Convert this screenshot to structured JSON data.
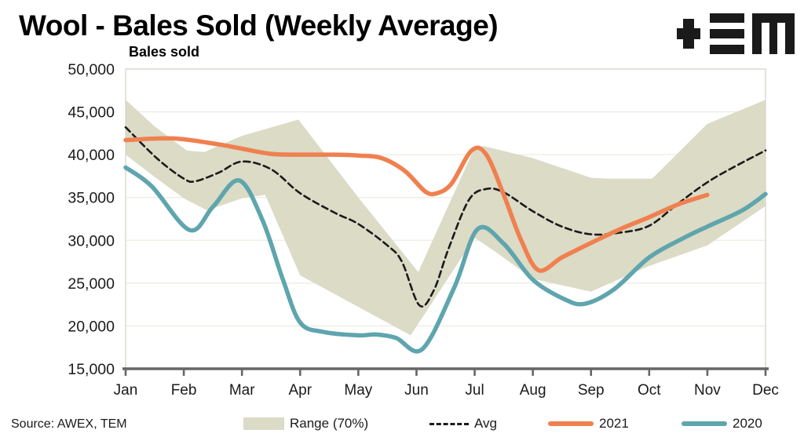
{
  "title": "Wool - Bales Sold (Weekly Average)",
  "axis_title": "Bales sold",
  "source_note": "Source: AWEX, TEM",
  "logo": {
    "name": "TEM",
    "glyphs": [
      "plus",
      "triple-bar",
      "m"
    ],
    "color": "#1a1a1a"
  },
  "colors": {
    "band": "#DBDBC6",
    "avg_line": "#1A1A1A",
    "series_2021": "#F0804F",
    "series_2020": "#5FA5AE",
    "grid": "#EDEBE1",
    "plot_border": "#D8D7CB",
    "axis": "#666666",
    "text": "#1A1A1A"
  },
  "chart_data": {
    "type": "line",
    "title": "Wool - Bales Sold (Weekly Average)",
    "xlabel": "",
    "ylabel": "Bales sold",
    "x_unit": "month-index (Jan=0 ... Dec=11), fractional = intra-month position",
    "categories": [
      "Jan",
      "Feb",
      "Mar",
      "Apr",
      "May",
      "Jun",
      "Jul",
      "Aug",
      "Sep",
      "Oct",
      "Nov",
      "Dec"
    ],
    "y_axis": {
      "min": 15000,
      "max": 50000,
      "step": 5000
    },
    "y_ticks": [
      50000,
      45000,
      40000,
      35000,
      30000,
      25000,
      20000,
      15000
    ],
    "grid": "horizontal-only",
    "legend_position": "bottom",
    "legend": [
      {
        "label": "Range (70%)",
        "type": "area",
        "color": "#DBDBC6"
      },
      {
        "label": "Avg",
        "type": "dashed-line",
        "color": "#1A1A1A"
      },
      {
        "label": "2021",
        "type": "line",
        "color": "#F0804F"
      },
      {
        "label": "2020",
        "type": "line",
        "color": "#5FA5AE"
      }
    ],
    "series": [
      {
        "name": "Range (70%)",
        "type": "band",
        "color": "#DBDBC6",
        "upper": [
          [
            0,
            46400
          ],
          [
            0.5,
            43300
          ],
          [
            1.05,
            40500
          ],
          [
            1.35,
            40300
          ],
          [
            2,
            42200
          ],
          [
            2.97,
            44100
          ],
          [
            4,
            35000
          ],
          [
            5.03,
            26300
          ],
          [
            6,
            40800
          ],
          [
            6.15,
            41000
          ],
          [
            7,
            39600
          ],
          [
            8,
            37300
          ],
          [
            8.3,
            37200
          ],
          [
            9.05,
            37200
          ],
          [
            10,
            43600
          ],
          [
            11,
            46400
          ]
        ],
        "lower": [
          [
            0,
            40000
          ],
          [
            0.5,
            37400
          ],
          [
            1,
            34900
          ],
          [
            1.4,
            33500
          ],
          [
            2,
            34900
          ],
          [
            2.4,
            35300
          ],
          [
            3,
            25900
          ],
          [
            3.9,
            22600
          ],
          [
            4.9,
            18900
          ],
          [
            6,
            30300
          ],
          [
            6.35,
            28700
          ],
          [
            7,
            25500
          ],
          [
            8,
            24000
          ],
          [
            9,
            27000
          ],
          [
            10,
            29400
          ],
          [
            11,
            34000
          ]
        ]
      },
      {
        "name": "Avg",
        "type": "line",
        "dashed": true,
        "color": "#1A1A1A",
        "width": 2.6,
        "points": [
          [
            0,
            43200
          ],
          [
            0.55,
            39500
          ],
          [
            1,
            37200
          ],
          [
            1.2,
            36900
          ],
          [
            1.6,
            37900
          ],
          [
            2,
            39200
          ],
          [
            2.5,
            38300
          ],
          [
            3,
            35500
          ],
          [
            3.6,
            33200
          ],
          [
            4,
            31900
          ],
          [
            4.5,
            29400
          ],
          [
            4.75,
            27500
          ],
          [
            5.05,
            22400
          ],
          [
            5.3,
            24200
          ],
          [
            5.55,
            29000
          ],
          [
            5.9,
            34700
          ],
          [
            6.2,
            36000
          ],
          [
            6.5,
            35600
          ],
          [
            7,
            33400
          ],
          [
            7.5,
            31600
          ],
          [
            8,
            30700
          ],
          [
            8.5,
            30900
          ],
          [
            9,
            31700
          ],
          [
            9.5,
            34300
          ],
          [
            10.1,
            37200
          ],
          [
            11,
            40500
          ]
        ]
      },
      {
        "name": "2021",
        "type": "line",
        "dashed": false,
        "color": "#F0804F",
        "width": 5.5,
        "points": [
          [
            0,
            41700
          ],
          [
            0.6,
            41900
          ],
          [
            1,
            41800
          ],
          [
            1.6,
            41200
          ],
          [
            2,
            40700
          ],
          [
            2.5,
            40100
          ],
          [
            3,
            40000
          ],
          [
            3.6,
            40000
          ],
          [
            4,
            39900
          ],
          [
            4.4,
            39600
          ],
          [
            4.8,
            38100
          ],
          [
            5.15,
            35700
          ],
          [
            5.35,
            35500
          ],
          [
            5.6,
            36600
          ],
          [
            5.95,
            40500
          ],
          [
            6.2,
            40000
          ],
          [
            6.5,
            35300
          ],
          [
            6.8,
            30000
          ],
          [
            7.1,
            26500
          ],
          [
            7.5,
            28000
          ],
          [
            8,
            29700
          ],
          [
            8.5,
            31300
          ],
          [
            9,
            32700
          ],
          [
            9.5,
            34200
          ],
          [
            10,
            35300
          ]
        ]
      },
      {
        "name": "2020",
        "type": "line",
        "dashed": false,
        "color": "#5FA5AE",
        "width": 5.5,
        "points": [
          [
            0,
            38500
          ],
          [
            0.45,
            36300
          ],
          [
            1.1,
            31200
          ],
          [
            1.5,
            33900
          ],
          [
            1.95,
            37000
          ],
          [
            2.35,
            32400
          ],
          [
            2.7,
            25500
          ],
          [
            3,
            20400
          ],
          [
            3.4,
            19300
          ],
          [
            4,
            18900
          ],
          [
            4.3,
            19000
          ],
          [
            4.65,
            18600
          ],
          [
            5.1,
            17300
          ],
          [
            5.65,
            24500
          ],
          [
            6.05,
            31300
          ],
          [
            6.5,
            29600
          ],
          [
            7,
            25400
          ],
          [
            7.55,
            23100
          ],
          [
            7.9,
            22600
          ],
          [
            8.4,
            24300
          ],
          [
            9,
            28000
          ],
          [
            9.6,
            30300
          ],
          [
            10,
            31600
          ],
          [
            10.6,
            33500
          ],
          [
            11,
            35400
          ]
        ]
      }
    ]
  }
}
